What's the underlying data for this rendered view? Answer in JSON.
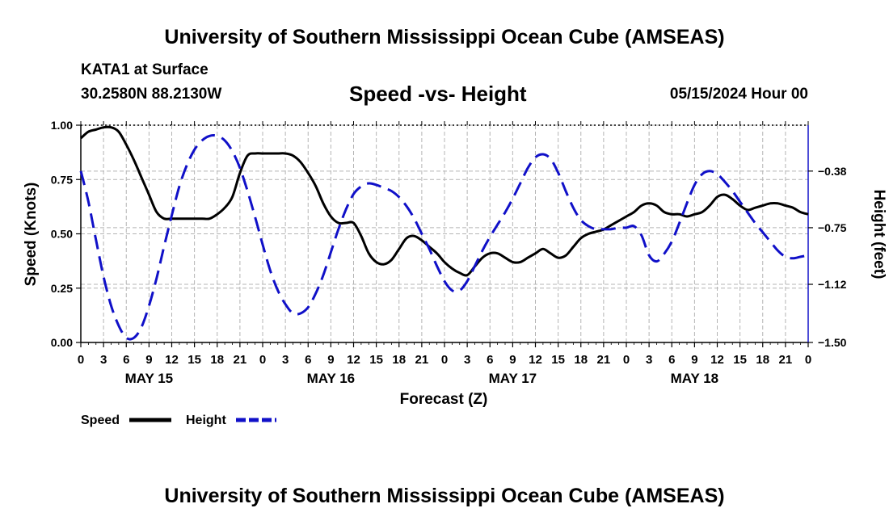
{
  "header": {
    "title": "University of Southern Mississippi Ocean Cube (AMSEAS)",
    "station": "KATA1 at Surface",
    "coords": "30.2580N  88.2130W",
    "subtitle": "Speed -vs- Height",
    "datetime": "05/15/2024 Hour 00"
  },
  "footer": {
    "title": "University of Southern Mississippi Ocean Cube (AMSEAS)"
  },
  "chart_data": {
    "type": "line",
    "title": "Speed -vs- Height",
    "xlabel": "Forecast (Z)",
    "ylabel": "Speed (Knots)",
    "y2label": "Height (feet)",
    "xlim": [
      0,
      96
    ],
    "ylim": [
      0,
      1.0
    ],
    "y2lim": [
      -1.5,
      -0.08
    ],
    "x_tick_labels": [
      "0",
      "3",
      "6",
      "9",
      "12",
      "15",
      "18",
      "21",
      "0",
      "3",
      "6",
      "9",
      "12",
      "15",
      "18",
      "21",
      "0",
      "3",
      "6",
      "9",
      "12",
      "15",
      "18",
      "21",
      "0",
      "3",
      "6",
      "9",
      "12",
      "15",
      "18",
      "21",
      "0"
    ],
    "y_ticks": [
      "0.00",
      "0.25",
      "0.50",
      "0.75",
      "1.00"
    ],
    "y2_ticks": [
      "-1.50",
      "-1.12",
      "-0.75",
      "-0.38"
    ],
    "day_labels": [
      {
        "label": "MAY 15",
        "hour": 9
      },
      {
        "label": "MAY 16",
        "hour": 33
      },
      {
        "label": "MAY 17",
        "hour": 57
      },
      {
        "label": "MAY 18",
        "hour": 81
      }
    ],
    "grid": true,
    "legend": "bottom-left",
    "series": [
      {
        "name": "Speed",
        "color": "#000000",
        "axis": "left",
        "style": "solid",
        "x": [
          0,
          1,
          2,
          3,
          4,
          5,
          6,
          7,
          8,
          9,
          10,
          11,
          12,
          13,
          14,
          15,
          16,
          17,
          18,
          19,
          20,
          21,
          22,
          23,
          24,
          25,
          26,
          27,
          28,
          29,
          30,
          31,
          32,
          33,
          34,
          35,
          36,
          37,
          38,
          39,
          40,
          41,
          42,
          43,
          44,
          45,
          46,
          47,
          48,
          49,
          50,
          51,
          52,
          53,
          54,
          55,
          56,
          57,
          58,
          59,
          60,
          61,
          62,
          63,
          64,
          65,
          66,
          67,
          68,
          69,
          70,
          71,
          72,
          73,
          74,
          75,
          76,
          77,
          78,
          79,
          80,
          81,
          82,
          83,
          84,
          85,
          86,
          87,
          88,
          89,
          90,
          91,
          92,
          93,
          94,
          95,
          96
        ],
        "values": [
          0.94,
          0.97,
          0.98,
          0.99,
          0.99,
          0.97,
          0.91,
          0.84,
          0.76,
          0.68,
          0.6,
          0.57,
          0.57,
          0.57,
          0.57,
          0.57,
          0.57,
          0.57,
          0.59,
          0.62,
          0.67,
          0.78,
          0.86,
          0.87,
          0.87,
          0.87,
          0.87,
          0.87,
          0.86,
          0.83,
          0.78,
          0.72,
          0.64,
          0.58,
          0.55,
          0.55,
          0.55,
          0.49,
          0.41,
          0.37,
          0.36,
          0.38,
          0.43,
          0.48,
          0.49,
          0.47,
          0.44,
          0.41,
          0.37,
          0.34,
          0.32,
          0.31,
          0.35,
          0.39,
          0.41,
          0.41,
          0.39,
          0.37,
          0.37,
          0.39,
          0.41,
          0.43,
          0.41,
          0.39,
          0.4,
          0.44,
          0.48,
          0.5,
          0.51,
          0.52,
          0.54,
          0.56,
          0.58,
          0.6,
          0.63,
          0.64,
          0.63,
          0.6,
          0.59,
          0.59,
          0.58,
          0.59,
          0.6,
          0.63,
          0.67,
          0.68,
          0.66,
          0.63,
          0.61,
          0.62,
          0.63,
          0.64,
          0.64,
          0.63,
          0.62,
          0.6,
          0.59
        ]
      },
      {
        "name": "Height",
        "color": "#1010c8",
        "axis": "right",
        "style": "dashed",
        "x": [
          0,
          1,
          2,
          3,
          4,
          5,
          6,
          7,
          8,
          9,
          10,
          11,
          12,
          13,
          14,
          15,
          16,
          17,
          18,
          19,
          20,
          21,
          22,
          23,
          24,
          25,
          26,
          27,
          28,
          29,
          30,
          31,
          32,
          33,
          34,
          35,
          36,
          37,
          38,
          39,
          40,
          41,
          42,
          43,
          44,
          45,
          46,
          47,
          48,
          49,
          50,
          51,
          52,
          53,
          54,
          55,
          56,
          57,
          58,
          59,
          60,
          61,
          62,
          63,
          64,
          65,
          66,
          67,
          68,
          69,
          70,
          71,
          72,
          73,
          74,
          75,
          76,
          77,
          78,
          79,
          80,
          81,
          82,
          83,
          84,
          85,
          86,
          87,
          88,
          89,
          90,
          91,
          92,
          93,
          94,
          95,
          96
        ],
        "values": [
          -0.38,
          -0.58,
          -0.83,
          -1.07,
          -1.26,
          -1.39,
          -1.47,
          -1.47,
          -1.4,
          -1.26,
          -1.08,
          -0.87,
          -0.67,
          -0.48,
          -0.34,
          -0.24,
          -0.18,
          -0.15,
          -0.15,
          -0.18,
          -0.25,
          -0.36,
          -0.51,
          -0.68,
          -0.86,
          -1.03,
          -1.16,
          -1.25,
          -1.31,
          -1.31,
          -1.27,
          -1.18,
          -1.06,
          -0.91,
          -0.76,
          -0.63,
          -0.53,
          -0.48,
          -0.46,
          -0.47,
          -0.49,
          -0.51,
          -0.55,
          -0.61,
          -0.69,
          -0.79,
          -0.89,
          -1.0,
          -1.1,
          -1.16,
          -1.16,
          -1.1,
          -1.0,
          -0.9,
          -0.81,
          -0.73,
          -0.65,
          -0.56,
          -0.46,
          -0.36,
          -0.29,
          -0.27,
          -0.3,
          -0.39,
          -0.51,
          -0.62,
          -0.7,
          -0.74,
          -0.76,
          -0.76,
          -0.76,
          -0.75,
          -0.75,
          -0.74,
          -0.8,
          -0.93,
          -0.97,
          -0.92,
          -0.84,
          -0.72,
          -0.59,
          -0.47,
          -0.4,
          -0.38,
          -0.4,
          -0.45,
          -0.51,
          -0.58,
          -0.65,
          -0.72,
          -0.78,
          -0.84,
          -0.9,
          -0.94,
          -0.95,
          -0.94,
          -0.93
        ]
      }
    ]
  }
}
